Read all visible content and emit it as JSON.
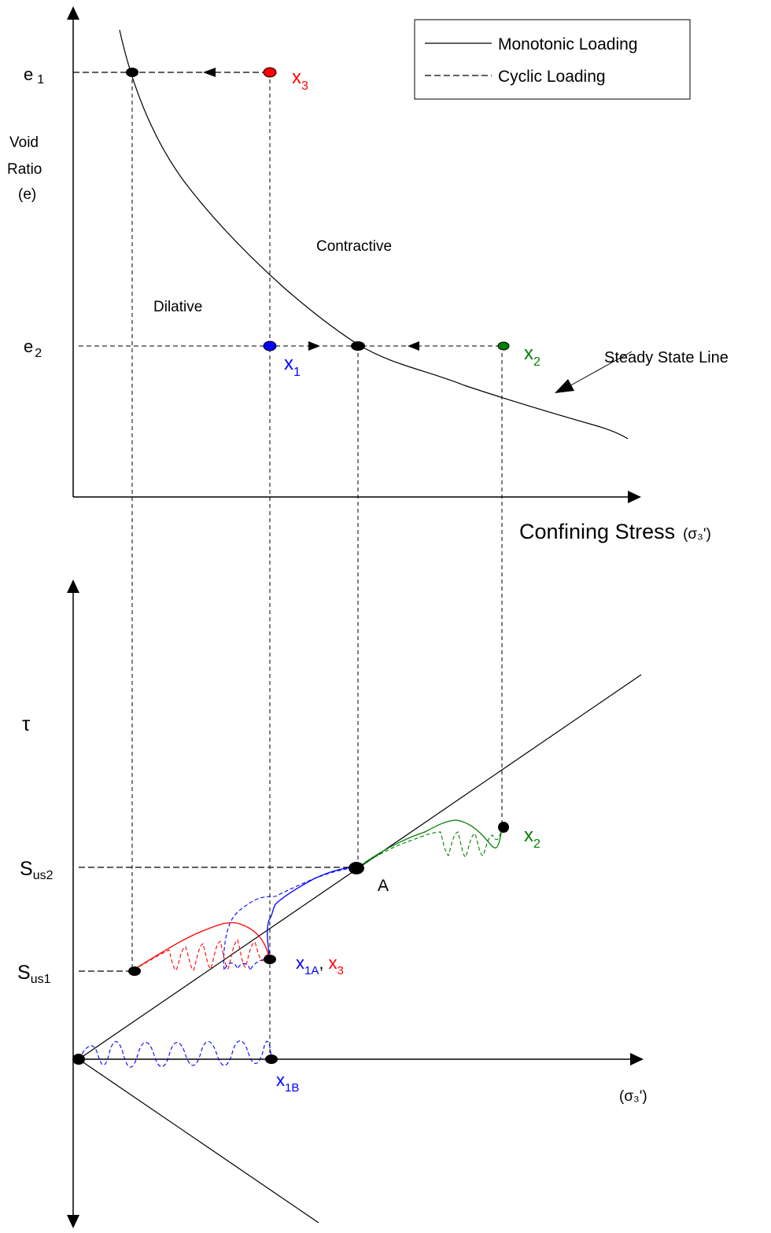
{
  "legend": {
    "solid_label": "Monotonic Loading",
    "dashed_label": "Cyclic Loading"
  },
  "top_plot": {
    "y_axis_label_lines": [
      "Void",
      "Ratio",
      "(e)"
    ],
    "x_axis_label": "Confining Stress",
    "x_axis_symbol": "(σ₃')",
    "e1_label": "e",
    "e1_sub": "1",
    "e2_label": "e",
    "e2_sub": "2",
    "region_contractive": "Contractive",
    "region_dilative": "Dilative",
    "steady_state_label": "Steady State Line",
    "point_x1": {
      "base": "x",
      "sub": "1"
    },
    "point_x2": {
      "base": "x",
      "sub": "2"
    },
    "point_x3": {
      "base": "x",
      "sub": "3"
    }
  },
  "bottom_plot": {
    "y_axis_label": "τ",
    "x_axis_symbol": "(σ₃')",
    "sus2": {
      "base": "S",
      "sub": "us2"
    },
    "sus1": {
      "base": "S",
      "sub": "us1"
    },
    "point_A": "A",
    "point_x2": {
      "base": "x",
      "sub": "2"
    },
    "point_x1A": {
      "base": "x",
      "sub": "1A"
    },
    "comma": ",",
    "point_x3": {
      "base": "x",
      "sub": "3"
    },
    "point_x1B": {
      "base": "x",
      "sub": "1B"
    }
  },
  "colors": {
    "x1": "#0000ff",
    "x2": "#008000",
    "x3": "#ff0000",
    "lines": "#000000"
  }
}
